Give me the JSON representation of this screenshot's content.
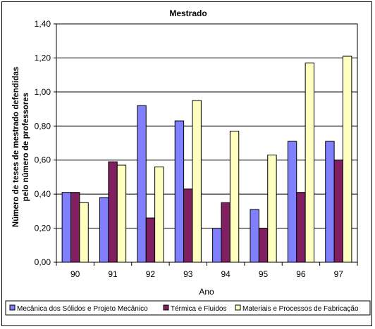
{
  "chart_data": {
    "type": "bar",
    "title": "Mestrado",
    "xlabel": "Ano",
    "ylabel_lines": [
      "Número de teses de mestrado defendidas",
      "pelo número de professores"
    ],
    "categories": [
      "90",
      "91",
      "92",
      "93",
      "94",
      "95",
      "96",
      "97"
    ],
    "ylim": [
      0,
      1.4
    ],
    "ytick_labels": [
      "0,00",
      "0,20",
      "0,40",
      "0,60",
      "0,80",
      "1,00",
      "1,20",
      "1,40"
    ],
    "grid": true,
    "legend_position": "bottom",
    "series": [
      {
        "name": "Mecânica dos Sólidos e Projeto Mecânico",
        "color": "#8080ff",
        "values": [
          0.41,
          0.38,
          0.92,
          0.83,
          0.2,
          0.31,
          0.71,
          0.71
        ]
      },
      {
        "name": "Térmica e Fluidos",
        "color": "#802060",
        "values": [
          0.41,
          0.59,
          0.26,
          0.43,
          0.35,
          0.2,
          0.41,
          0.6
        ]
      },
      {
        "name": "Materiais e Processos de Fabricação",
        "color": "#ffffc0",
        "values": [
          0.35,
          0.57,
          0.56,
          0.95,
          0.77,
          0.63,
          1.17,
          1.21
        ]
      }
    ]
  }
}
